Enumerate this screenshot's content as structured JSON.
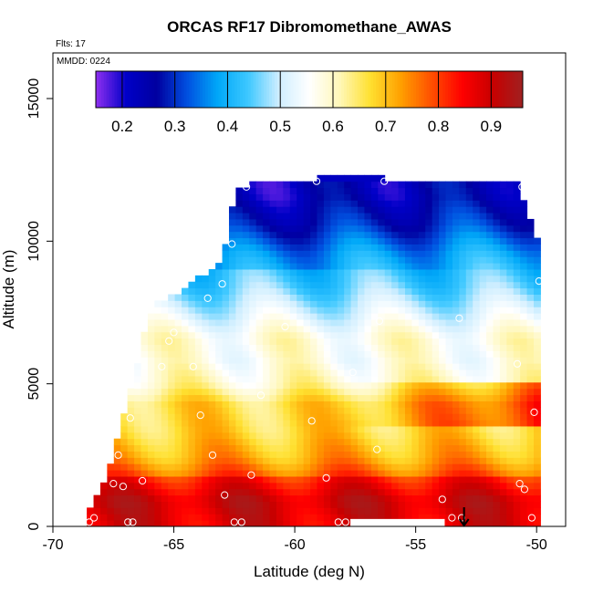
{
  "chart_data": {
    "type": "heatmap",
    "title": "ORCAS RF17 Dibromomethane_AWAS",
    "subtitle_flights": "Flts: 17",
    "subtitle_date": "MMDD: 0224",
    "xlabel": "Latitude (deg N)",
    "ylabel": "Altitude (m)",
    "xlim": [
      -70,
      -48.8
    ],
    "ylim": [
      0,
      16600
    ],
    "x_ticks": [
      -70,
      -65,
      -60,
      -55,
      -50
    ],
    "x_tick_labels": [
      "-70",
      "-65",
      "-60",
      "-55",
      "-50"
    ],
    "y_ticks": [
      0,
      5000,
      10000,
      15000
    ],
    "y_tick_labels": [
      "0",
      "5000",
      "10000",
      "15000"
    ],
    "colorbar": {
      "range": [
        0.15,
        0.96
      ],
      "ticks": [
        0.2,
        0.3,
        0.4,
        0.5,
        0.6,
        0.7,
        0.8,
        0.9
      ],
      "tick_labels": [
        "0.2",
        "0.3",
        "0.4",
        "0.5",
        "0.6",
        "0.7",
        "0.8",
        "0.9"
      ],
      "colors": [
        "#8f2ff0",
        "#0000c8",
        "#0000a0",
        "#0050e0",
        "#00a8f8",
        "#3ec8ff",
        "#cfeeff",
        "#ffffff",
        "#fff7b8",
        "#ffe030",
        "#ffa000",
        "#ff5000",
        "#ff0000",
        "#c80000",
        "#a02020"
      ]
    },
    "field_shape": {
      "upper_edge_by_lat": [
        [
          -68.6,
          300
        ],
        [
          -67.6,
          2200
        ],
        [
          -66.5,
          5800
        ],
        [
          -66.0,
          7700
        ],
        [
          -65.0,
          8100
        ],
        [
          -63.0,
          9300
        ],
        [
          -62.5,
          11700
        ],
        [
          -62.0,
          12000
        ],
        [
          -50.8,
          12000
        ],
        [
          -49.7,
          9500
        ],
        [
          -49.7,
          0
        ]
      ]
    },
    "mean_profile": [
      {
        "alt": 200,
        "value": 0.84
      },
      {
        "alt": 900,
        "value": 0.86
      },
      {
        "alt": 1600,
        "value": 0.8
      },
      {
        "alt": 2400,
        "value": 0.72
      },
      {
        "alt": 3300,
        "value": 0.68
      },
      {
        "alt": 4300,
        "value": 0.67
      },
      {
        "alt": 5000,
        "value": 0.6
      },
      {
        "alt": 5800,
        "value": 0.57
      },
      {
        "alt": 6600,
        "value": 0.58
      },
      {
        "alt": 7400,
        "value": 0.52
      },
      {
        "alt": 8400,
        "value": 0.45
      },
      {
        "alt": 9500,
        "value": 0.4
      },
      {
        "alt": 10600,
        "value": 0.31
      },
      {
        "alt": 11600,
        "value": 0.26
      }
    ],
    "samples": [
      [
        -68.5,
        150
      ],
      [
        -68.3,
        300
      ],
      [
        -67.5,
        1500
      ],
      [
        -67.1,
        1400
      ],
      [
        -67.3,
        2500
      ],
      [
        -66.8,
        3800
      ],
      [
        -66.9,
        150
      ],
      [
        -66.7,
        150
      ],
      [
        -66.3,
        1600
      ],
      [
        -65.0,
        6800
      ],
      [
        -65.2,
        6500
      ],
      [
        -65.5,
        5600
      ],
      [
        -66.0,
        7650
      ],
      [
        -64.2,
        5600
      ],
      [
        -63.9,
        3900
      ],
      [
        -63.6,
        8000
      ],
      [
        -63.4,
        2500
      ],
      [
        -63.0,
        8500
      ],
      [
        -62.9,
        1100
      ],
      [
        -62.6,
        9900
      ],
      [
        -62.5,
        150
      ],
      [
        -62.2,
        150
      ],
      [
        -62.0,
        11900
      ],
      [
        -61.8,
        1800
      ],
      [
        -61.4,
        4600
      ],
      [
        -60.4,
        7000
      ],
      [
        -59.3,
        3700
      ],
      [
        -59.1,
        12100
      ],
      [
        -58.7,
        1700
      ],
      [
        -58.2,
        150
      ],
      [
        -57.9,
        150
      ],
      [
        -57.6,
        5400
      ],
      [
        -56.6,
        2700
      ],
      [
        -56.5,
        7200
      ],
      [
        -56.3,
        12100
      ],
      [
        -53.9,
        950
      ],
      [
        -53.5,
        300
      ],
      [
        -53.2,
        7300
      ],
      [
        -53.1,
        300
      ],
      [
        -50.8,
        5700
      ],
      [
        -50.6,
        11900
      ],
      [
        -50.7,
        1500
      ],
      [
        -50.5,
        1300
      ],
      [
        -50.2,
        300
      ],
      [
        -49.9,
        8600
      ],
      [
        -49.6,
        800
      ],
      [
        -50.1,
        4000
      ]
    ],
    "annotation_arrow_lat": -53.0
  }
}
